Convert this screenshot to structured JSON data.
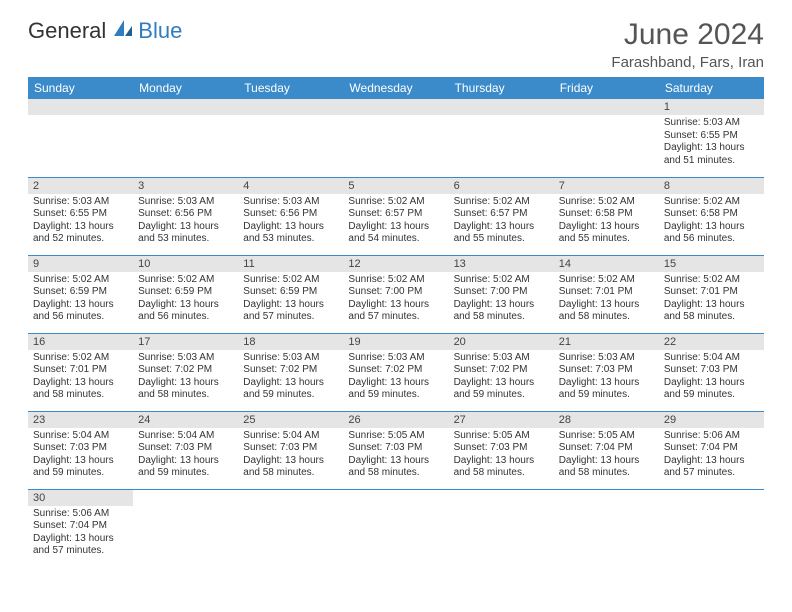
{
  "logo": {
    "part1": "General",
    "part2": "Blue"
  },
  "title": "June 2024",
  "location": "Farashband, Fars, Iran",
  "colors": {
    "header_bg": "#3b8bca",
    "date_bar_bg": "#e5e5e5",
    "row_border": "#3b8bca"
  },
  "day_headers": [
    "Sunday",
    "Monday",
    "Tuesday",
    "Wednesday",
    "Thursday",
    "Friday",
    "Saturday"
  ],
  "weeks": [
    [
      null,
      null,
      null,
      null,
      null,
      null,
      {
        "date": "1",
        "sunrise": "Sunrise: 5:03 AM",
        "sunset": "Sunset: 6:55 PM",
        "daylight": "Daylight: 13 hours and 51 minutes."
      }
    ],
    [
      {
        "date": "2",
        "sunrise": "Sunrise: 5:03 AM",
        "sunset": "Sunset: 6:55 PM",
        "daylight": "Daylight: 13 hours and 52 minutes."
      },
      {
        "date": "3",
        "sunrise": "Sunrise: 5:03 AM",
        "sunset": "Sunset: 6:56 PM",
        "daylight": "Daylight: 13 hours and 53 minutes."
      },
      {
        "date": "4",
        "sunrise": "Sunrise: 5:03 AM",
        "sunset": "Sunset: 6:56 PM",
        "daylight": "Daylight: 13 hours and 53 minutes."
      },
      {
        "date": "5",
        "sunrise": "Sunrise: 5:02 AM",
        "sunset": "Sunset: 6:57 PM",
        "daylight": "Daylight: 13 hours and 54 minutes."
      },
      {
        "date": "6",
        "sunrise": "Sunrise: 5:02 AM",
        "sunset": "Sunset: 6:57 PM",
        "daylight": "Daylight: 13 hours and 55 minutes."
      },
      {
        "date": "7",
        "sunrise": "Sunrise: 5:02 AM",
        "sunset": "Sunset: 6:58 PM",
        "daylight": "Daylight: 13 hours and 55 minutes."
      },
      {
        "date": "8",
        "sunrise": "Sunrise: 5:02 AM",
        "sunset": "Sunset: 6:58 PM",
        "daylight": "Daylight: 13 hours and 56 minutes."
      }
    ],
    [
      {
        "date": "9",
        "sunrise": "Sunrise: 5:02 AM",
        "sunset": "Sunset: 6:59 PM",
        "daylight": "Daylight: 13 hours and 56 minutes."
      },
      {
        "date": "10",
        "sunrise": "Sunrise: 5:02 AM",
        "sunset": "Sunset: 6:59 PM",
        "daylight": "Daylight: 13 hours and 56 minutes."
      },
      {
        "date": "11",
        "sunrise": "Sunrise: 5:02 AM",
        "sunset": "Sunset: 6:59 PM",
        "daylight": "Daylight: 13 hours and 57 minutes."
      },
      {
        "date": "12",
        "sunrise": "Sunrise: 5:02 AM",
        "sunset": "Sunset: 7:00 PM",
        "daylight": "Daylight: 13 hours and 57 minutes."
      },
      {
        "date": "13",
        "sunrise": "Sunrise: 5:02 AM",
        "sunset": "Sunset: 7:00 PM",
        "daylight": "Daylight: 13 hours and 58 minutes."
      },
      {
        "date": "14",
        "sunrise": "Sunrise: 5:02 AM",
        "sunset": "Sunset: 7:01 PM",
        "daylight": "Daylight: 13 hours and 58 minutes."
      },
      {
        "date": "15",
        "sunrise": "Sunrise: 5:02 AM",
        "sunset": "Sunset: 7:01 PM",
        "daylight": "Daylight: 13 hours and 58 minutes."
      }
    ],
    [
      {
        "date": "16",
        "sunrise": "Sunrise: 5:02 AM",
        "sunset": "Sunset: 7:01 PM",
        "daylight": "Daylight: 13 hours and 58 minutes."
      },
      {
        "date": "17",
        "sunrise": "Sunrise: 5:03 AM",
        "sunset": "Sunset: 7:02 PM",
        "daylight": "Daylight: 13 hours and 58 minutes."
      },
      {
        "date": "18",
        "sunrise": "Sunrise: 5:03 AM",
        "sunset": "Sunset: 7:02 PM",
        "daylight": "Daylight: 13 hours and 59 minutes."
      },
      {
        "date": "19",
        "sunrise": "Sunrise: 5:03 AM",
        "sunset": "Sunset: 7:02 PM",
        "daylight": "Daylight: 13 hours and 59 minutes."
      },
      {
        "date": "20",
        "sunrise": "Sunrise: 5:03 AM",
        "sunset": "Sunset: 7:02 PM",
        "daylight": "Daylight: 13 hours and 59 minutes."
      },
      {
        "date": "21",
        "sunrise": "Sunrise: 5:03 AM",
        "sunset": "Sunset: 7:03 PM",
        "daylight": "Daylight: 13 hours and 59 minutes."
      },
      {
        "date": "22",
        "sunrise": "Sunrise: 5:04 AM",
        "sunset": "Sunset: 7:03 PM",
        "daylight": "Daylight: 13 hours and 59 minutes."
      }
    ],
    [
      {
        "date": "23",
        "sunrise": "Sunrise: 5:04 AM",
        "sunset": "Sunset: 7:03 PM",
        "daylight": "Daylight: 13 hours and 59 minutes."
      },
      {
        "date": "24",
        "sunrise": "Sunrise: 5:04 AM",
        "sunset": "Sunset: 7:03 PM",
        "daylight": "Daylight: 13 hours and 59 minutes."
      },
      {
        "date": "25",
        "sunrise": "Sunrise: 5:04 AM",
        "sunset": "Sunset: 7:03 PM",
        "daylight": "Daylight: 13 hours and 58 minutes."
      },
      {
        "date": "26",
        "sunrise": "Sunrise: 5:05 AM",
        "sunset": "Sunset: 7:03 PM",
        "daylight": "Daylight: 13 hours and 58 minutes."
      },
      {
        "date": "27",
        "sunrise": "Sunrise: 5:05 AM",
        "sunset": "Sunset: 7:03 PM",
        "daylight": "Daylight: 13 hours and 58 minutes."
      },
      {
        "date": "28",
        "sunrise": "Sunrise: 5:05 AM",
        "sunset": "Sunset: 7:04 PM",
        "daylight": "Daylight: 13 hours and 58 minutes."
      },
      {
        "date": "29",
        "sunrise": "Sunrise: 5:06 AM",
        "sunset": "Sunset: 7:04 PM",
        "daylight": "Daylight: 13 hours and 57 minutes."
      }
    ],
    [
      {
        "date": "30",
        "sunrise": "Sunrise: 5:06 AM",
        "sunset": "Sunset: 7:04 PM",
        "daylight": "Daylight: 13 hours and 57 minutes."
      },
      null,
      null,
      null,
      null,
      null,
      null
    ]
  ]
}
